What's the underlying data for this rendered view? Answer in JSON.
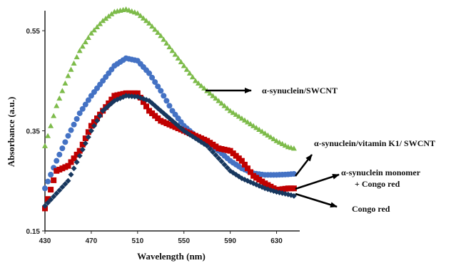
{
  "chart_data": {
    "type": "scatter",
    "xlabel": "Wavelength (nm)",
    "ylabel": "Absorbance (a.u.)",
    "xlim": [
      430,
      650
    ],
    "ylim": [
      0.15,
      0.59
    ],
    "x_ticks": [
      "430",
      "470",
      "510",
      "550",
      "590",
      "630"
    ],
    "y_ticks": [
      "0.15",
      "0.35",
      "0.55"
    ],
    "grid": false,
    "legend": "none (series identified by arrow annotations on the right)",
    "x": [
      430,
      440,
      450,
      460,
      470,
      480,
      490,
      500,
      510,
      520,
      530,
      540,
      550,
      560,
      570,
      580,
      590,
      600,
      610,
      620,
      630,
      640,
      645
    ],
    "series": [
      {
        "name": "α-synuclein/SWCNT",
        "marker": "triangle",
        "color": "#7dbb4a",
        "values": [
          0.32,
          0.4,
          0.46,
          0.51,
          0.545,
          0.57,
          0.588,
          0.593,
          0.585,
          0.565,
          0.54,
          0.51,
          0.48,
          0.45,
          0.43,
          0.41,
          0.39,
          0.375,
          0.36,
          0.345,
          0.33,
          0.318,
          0.315
        ]
      },
      {
        "name": "α-synuclein/vitamin K1/ SWCNT",
        "marker": "circle",
        "color": "#4472c4",
        "values": [
          0.235,
          0.29,
          0.34,
          0.385,
          0.42,
          0.45,
          0.48,
          0.495,
          0.49,
          0.465,
          0.43,
          0.39,
          0.36,
          0.34,
          0.325,
          0.31,
          0.29,
          0.275,
          0.265,
          0.262,
          0.262,
          0.263,
          0.264
        ]
      },
      {
        "name": "α-synuclein monomer + Congo red",
        "marker": "square",
        "color": "#c00000",
        "values": [
          0.195,
          0.27,
          0.28,
          0.31,
          0.36,
          0.39,
          0.42,
          0.425,
          0.425,
          0.39,
          0.37,
          0.36,
          0.35,
          0.34,
          0.33,
          0.315,
          0.31,
          0.29,
          0.26,
          0.245,
          0.232,
          0.235,
          0.235
        ]
      },
      {
        "name": "Congo red",
        "marker": "diamond",
        "color": "#17375e",
        "values": [
          0.2,
          0.225,
          0.25,
          0.3,
          0.35,
          0.39,
          0.41,
          0.42,
          0.418,
          0.41,
          0.39,
          0.37,
          0.35,
          0.335,
          0.32,
          0.295,
          0.27,
          0.255,
          0.245,
          0.235,
          0.228,
          0.223,
          0.22
        ]
      }
    ],
    "annotations": [
      {
        "text": "α-synuclein/SWCNT"
      },
      {
        "text": "α-synuclein/vitamin K1/ SWCNT"
      },
      {
        "text": "α-synuclein monomer",
        "text2": "+ Congo red"
      },
      {
        "text": "Congo red"
      }
    ]
  }
}
